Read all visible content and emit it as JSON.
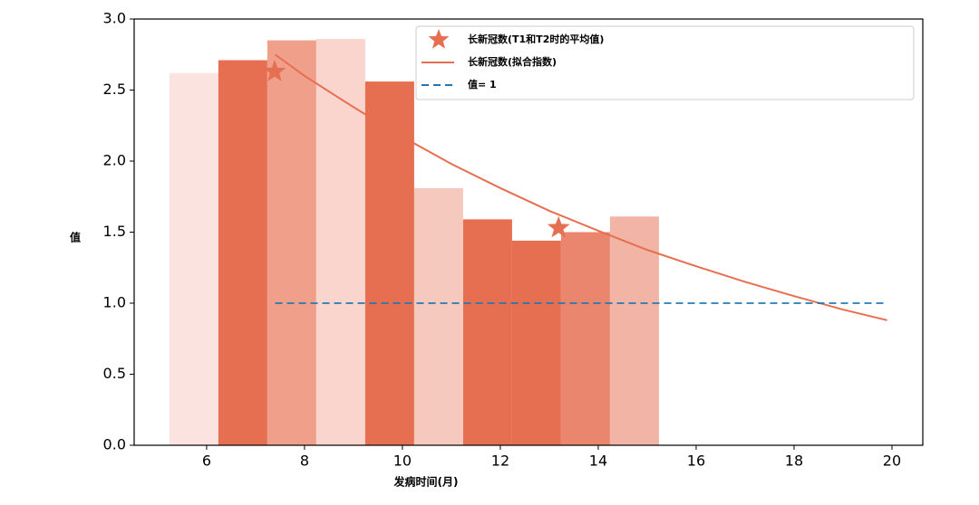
{
  "chart_data": {
    "type": "bar",
    "x_label": "发病时间(月)",
    "y_label": "值",
    "xlim": [
      4.52,
      20.63
    ],
    "ylim": [
      0,
      3.0
    ],
    "xticks": [
      6,
      8,
      10,
      12,
      14,
      16,
      18,
      20
    ],
    "yticks": [
      {
        "value": 0,
        "label": "0.0"
      },
      0.5,
      {
        "value": 1,
        "label": "1.0"
      },
      1.5,
      {
        "value": 2,
        "label": "2.0"
      },
      2.5,
      {
        "value": 3,
        "label": "3.0"
      }
    ],
    "legend": "upper right",
    "series": [
      {
        "type": "bar",
        "bar_width": 1,
        "x": [
          5.74,
          6.74,
          7.74,
          8.74,
          9.74,
          10.74,
          11.74,
          12.74,
          13.74,
          14.74
        ],
        "values": [
          2.62,
          2.71,
          2.85,
          2.86,
          2.56,
          1.81,
          1.59,
          1.44,
          1.5,
          1.61
        ],
        "colors": [
          "#fbe4e0",
          "#e66f51",
          "#f0a08a",
          "#f9d5cd",
          "#e66f51",
          "#f5c9be",
          "#e66f51",
          "#e66f51",
          "#e9866d",
          "#f2b4a4"
        ]
      },
      {
        "type": "scatter",
        "name": "长新冠数(T1和T2时的平均值)",
        "color": "#e66f51",
        "x": [
          7.39,
          13.19
        ],
        "values": [
          2.63,
          1.53
        ]
      },
      {
        "type": "line",
        "name": "长新冠数(拟合指数)",
        "color": "#e66f51",
        "x": [
          7.4,
          8,
          9,
          10,
          11,
          12,
          13,
          14,
          15,
          16,
          17,
          18,
          19,
          19.9
        ],
        "values": [
          2.75,
          2.6,
          2.38,
          2.17,
          1.98,
          1.81,
          1.65,
          1.51,
          1.375,
          1.26,
          1.15,
          1.05,
          0.955,
          0.88
        ]
      },
      {
        "type": "line",
        "name": "值= 1",
        "color": "#1f77b4",
        "dashed": true,
        "x": [
          7.4,
          19.9
        ],
        "values": [
          1,
          1
        ]
      }
    ]
  }
}
